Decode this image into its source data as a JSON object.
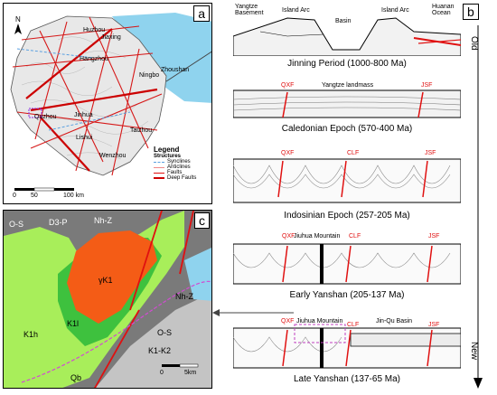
{
  "panel_a": {
    "tag": "a",
    "north": "N",
    "cities": [
      "Huzhou",
      "Jiaxing",
      "Hangzhou",
      "Ningbo",
      "Zhoushan",
      "Jinhua",
      "Quzhou",
      "Lishui",
      "Taizhou",
      "Wenzhou"
    ],
    "scale": {
      "zero": "0",
      "mid": "50",
      "end": "100 km"
    },
    "legend": {
      "title": "Legend",
      "subtitle": "Structures",
      "items": [
        "Synclines",
        "Anticlines",
        "Faults",
        "Deep Faults"
      ]
    }
  },
  "panel_b": {
    "tag": "b",
    "time_top": "Old",
    "time_bottom": "New",
    "sections": [
      {
        "caption": "Jinning Period  (1000-800 Ma)",
        "labels": [
          "Yangtze Basement",
          "Island Arc",
          "Basin",
          "Island Arc",
          "Huanan Ocean"
        ]
      },
      {
        "caption": "Caledonian Epoch  (570-400 Ma)",
        "labels": [
          "QXF",
          "Yangtze landmass",
          "JSF"
        ]
      },
      {
        "caption": "Indosinian Epoch  (257-205 Ma)",
        "labels": [
          "QXF",
          "CLF",
          "JSF"
        ]
      },
      {
        "caption": "Early Yanshan  (205-137 Ma)",
        "labels": [
          "QXF",
          "Jiuhua Mountain",
          "CLF",
          "JSF"
        ]
      },
      {
        "caption": "Late Yanshan  (137-65 Ma)",
        "labels": [
          "QXF",
          "Jiuhua Mountain",
          "CLF",
          "Jin-Qu Basin",
          "JSF"
        ]
      }
    ]
  },
  "panel_c": {
    "tag": "c",
    "units": [
      "O-S",
      "D3-P",
      "Nh-Z",
      "γK1",
      "K1l",
      "K1h",
      "Nh-Z",
      "O-S",
      "K1-K2",
      "Qb"
    ],
    "scale": {
      "zero": "0",
      "end": "5km"
    }
  },
  "colors": {
    "fault_red": "#e01010",
    "sea_blue": "#8fd3ee",
    "granite_orange": "#f45c16",
    "green_light": "#a8ee5a",
    "green_mid": "#3ec13e",
    "gray_dark": "#7a7a7a",
    "gray_light": "#c4c4c4",
    "syncline_blue": "#5aa0e0",
    "anticline_pink": "#f08a8a"
  }
}
